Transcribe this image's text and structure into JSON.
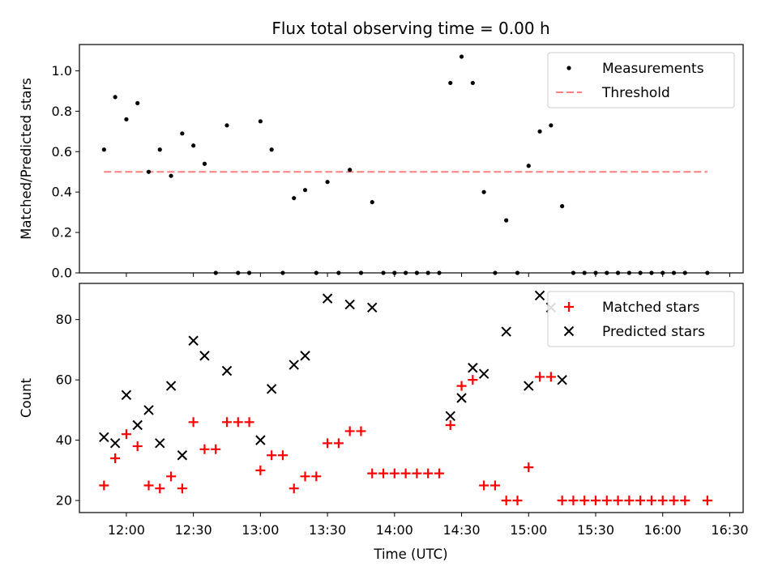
{
  "figure": {
    "title": "Flux total observing time = 0.00 h",
    "xlabel": "Time (UTC)"
  },
  "chart_data": [
    {
      "type": "scatter",
      "name": "top",
      "ylabel": "Matched/Predicted stars",
      "xlim": [
        "11:39",
        "16:36"
      ],
      "ylim": [
        0,
        1.13
      ],
      "yticks": [
        0.0,
        0.2,
        0.4,
        0.6,
        0.8,
        1.0
      ],
      "ytick_labels": [
        "0.0",
        "0.2",
        "0.4",
        "0.6",
        "0.8",
        "1.0"
      ],
      "legend_position": "top-right",
      "legend": [
        "Measurements",
        "Threshold"
      ],
      "threshold": {
        "label": "Threshold",
        "value": 0.5,
        "x_start": "11:50",
        "x_end": "16:20",
        "color": "#ff7f7f"
      },
      "series": [
        {
          "name": "Measurements",
          "color": "#000000",
          "points": [
            [
              "11:50",
              0.61
            ],
            [
              "11:55",
              0.87
            ],
            [
              "12:00",
              0.76
            ],
            [
              "12:05",
              0.84
            ],
            [
              "12:10",
              0.5
            ],
            [
              "12:15",
              0.61
            ],
            [
              "12:20",
              0.48
            ],
            [
              "12:25",
              0.69
            ],
            [
              "12:30",
              0.63
            ],
            [
              "12:35",
              0.54
            ],
            [
              "12:40",
              0.0
            ],
            [
              "12:45",
              0.73
            ],
            [
              "12:50",
              0.0
            ],
            [
              "12:55",
              0.0
            ],
            [
              "13:00",
              0.75
            ],
            [
              "13:05",
              0.61
            ],
            [
              "13:10",
              0.0
            ],
            [
              "13:15",
              0.37
            ],
            [
              "13:20",
              0.41
            ],
            [
              "13:25",
              0.0
            ],
            [
              "13:30",
              0.45
            ],
            [
              "13:35",
              0.0
            ],
            [
              "13:40",
              0.51
            ],
            [
              "13:45",
              0.0
            ],
            [
              "13:50",
              0.35
            ],
            [
              "13:55",
              0.0
            ],
            [
              "14:00",
              0.0
            ],
            [
              "14:05",
              0.0
            ],
            [
              "14:10",
              0.0
            ],
            [
              "14:15",
              0.0
            ],
            [
              "14:20",
              0.0
            ],
            [
              "14:25",
              0.94
            ],
            [
              "14:30",
              1.07
            ],
            [
              "14:35",
              0.94
            ],
            [
              "14:40",
              0.4
            ],
            [
              "14:45",
              0.0
            ],
            [
              "14:50",
              0.26
            ],
            [
              "14:55",
              0.0
            ],
            [
              "15:00",
              0.53
            ],
            [
              "15:05",
              0.7
            ],
            [
              "15:10",
              0.73
            ],
            [
              "15:15",
              0.33
            ],
            [
              "15:20",
              0.0
            ],
            [
              "15:25",
              0.0
            ],
            [
              "15:30",
              0.0
            ],
            [
              "15:35",
              0.0
            ],
            [
              "15:40",
              0.0
            ],
            [
              "15:45",
              0.0
            ],
            [
              "15:50",
              0.0
            ],
            [
              "15:55",
              0.0
            ],
            [
              "16:00",
              0.0
            ],
            [
              "16:05",
              0.0
            ],
            [
              "16:10",
              0.0
            ],
            [
              "16:20",
              0.0
            ]
          ]
        }
      ]
    },
    {
      "type": "scatter",
      "name": "bottom",
      "ylabel": "Count",
      "xlim": [
        "11:39",
        "16:36"
      ],
      "ylim": [
        16,
        92
      ],
      "yticks": [
        20,
        40,
        60,
        80
      ],
      "ytick_labels": [
        "20",
        "40",
        "60",
        "80"
      ],
      "xticks": [
        "12:00",
        "12:30",
        "13:00",
        "13:30",
        "14:00",
        "14:30",
        "15:00",
        "15:30",
        "16:00",
        "16:30"
      ],
      "xtick_labels": [
        "12:00",
        "12:30",
        "13:00",
        "13:30",
        "14:00",
        "14:30",
        "15:00",
        "15:30",
        "16:00",
        "16:30"
      ],
      "legend_position": "top-right",
      "legend": [
        "Matched stars",
        "Predicted stars"
      ],
      "series": [
        {
          "name": "Matched stars",
          "color": "#ff0000",
          "marker": "plus",
          "points": [
            [
              "11:50",
              25
            ],
            [
              "11:55",
              34
            ],
            [
              "12:00",
              42
            ],
            [
              "12:05",
              38
            ],
            [
              "12:10",
              25
            ],
            [
              "12:15",
              24
            ],
            [
              "12:20",
              28
            ],
            [
              "12:25",
              24
            ],
            [
              "12:30",
              46
            ],
            [
              "12:35",
              37
            ],
            [
              "12:40",
              37
            ],
            [
              "12:45",
              46
            ],
            [
              "12:50",
              46
            ],
            [
              "12:55",
              46
            ],
            [
              "13:00",
              30
            ],
            [
              "13:05",
              35
            ],
            [
              "13:10",
              35
            ],
            [
              "13:15",
              24
            ],
            [
              "13:20",
              28
            ],
            [
              "13:25",
              28
            ],
            [
              "13:30",
              39
            ],
            [
              "13:35",
              39
            ],
            [
              "13:40",
              43
            ],
            [
              "13:45",
              43
            ],
            [
              "13:50",
              29
            ],
            [
              "13:55",
              29
            ],
            [
              "14:00",
              29
            ],
            [
              "14:05",
              29
            ],
            [
              "14:10",
              29
            ],
            [
              "14:15",
              29
            ],
            [
              "14:20",
              29
            ],
            [
              "14:25",
              45
            ],
            [
              "14:30",
              58
            ],
            [
              "14:35",
              60
            ],
            [
              "14:40",
              25
            ],
            [
              "14:45",
              25
            ],
            [
              "14:50",
              20
            ],
            [
              "14:55",
              20
            ],
            [
              "15:00",
              31
            ],
            [
              "15:05",
              61
            ],
            [
              "15:10",
              61
            ],
            [
              "15:15",
              20
            ],
            [
              "15:20",
              20
            ],
            [
              "15:25",
              20
            ],
            [
              "15:30",
              20
            ],
            [
              "15:35",
              20
            ],
            [
              "15:40",
              20
            ],
            [
              "15:45",
              20
            ],
            [
              "15:50",
              20
            ],
            [
              "15:55",
              20
            ],
            [
              "16:00",
              20
            ],
            [
              "16:05",
              20
            ],
            [
              "16:10",
              20
            ],
            [
              "16:20",
              20
            ]
          ]
        },
        {
          "name": "Predicted stars",
          "color": "#000000",
          "marker": "x",
          "points": [
            [
              "11:50",
              41
            ],
            [
              "11:55",
              39
            ],
            [
              "12:00",
              55
            ],
            [
              "12:05",
              45
            ],
            [
              "12:10",
              50
            ],
            [
              "12:15",
              39
            ],
            [
              "12:20",
              58
            ],
            [
              "12:25",
              35
            ],
            [
              "12:30",
              73
            ],
            [
              "12:35",
              68
            ],
            [
              "12:45",
              63
            ],
            [
              "13:00",
              40
            ],
            [
              "13:05",
              57
            ],
            [
              "13:15",
              65
            ],
            [
              "13:20",
              68
            ],
            [
              "13:30",
              87
            ],
            [
              "13:40",
              85
            ],
            [
              "13:50",
              84
            ],
            [
              "14:25",
              48
            ],
            [
              "14:30",
              54
            ],
            [
              "14:35",
              64
            ],
            [
              "14:40",
              62
            ],
            [
              "14:50",
              76
            ],
            [
              "15:00",
              58
            ],
            [
              "15:05",
              88
            ],
            [
              "15:10",
              84
            ],
            [
              "15:15",
              60
            ]
          ]
        }
      ]
    }
  ]
}
